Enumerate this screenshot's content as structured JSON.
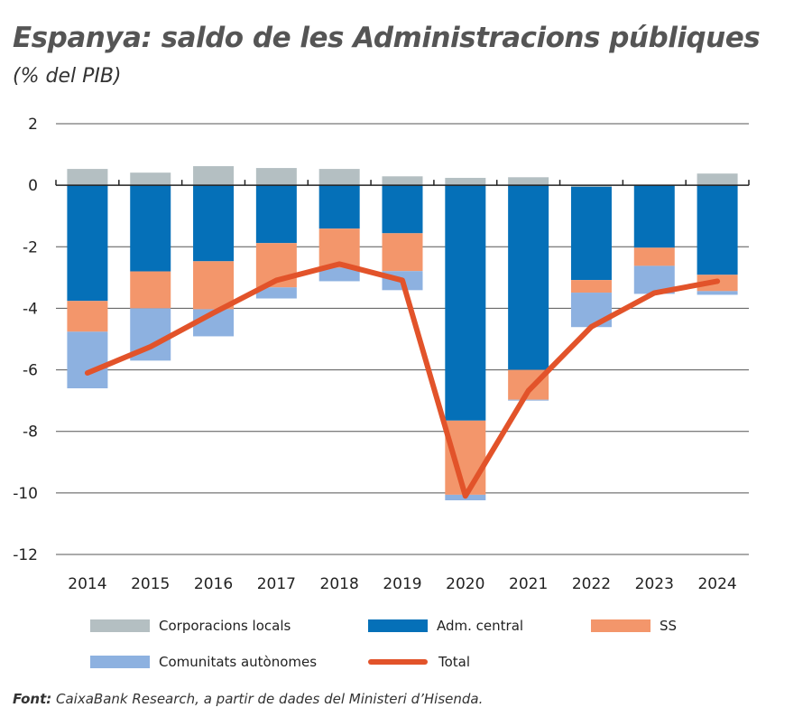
{
  "title": "Espanya: saldo de les Administracions públiques",
  "subtitle": "(% del PIB)",
  "source_label": "Font:",
  "source_text": " CaixaBank Research, a partir de dades del Ministeri d’Hisenda.",
  "chart_data": {
    "type": "bar",
    "stacked": true,
    "categories": [
      "2014",
      "2015",
      "2016",
      "2017",
      "2018",
      "2019",
      "2020",
      "2021",
      "2022",
      "2023",
      "2024"
    ],
    "ylim": [
      -12,
      2
    ],
    "yticks": [
      2,
      0,
      -2,
      -4,
      -6,
      -8,
      -10,
      -12
    ],
    "grid": true,
    "legend_position": "bottom",
    "series": [
      {
        "name": "Corporacions locals",
        "color": "#b4bfc2",
        "values": [
          0.53,
          0.41,
          0.62,
          0.56,
          0.53,
          0.29,
          0.24,
          0.26,
          -0.05,
          0.0,
          0.38
        ]
      },
      {
        "name": "Adm. central",
        "color": "#0570b8",
        "values": [
          -3.76,
          -2.8,
          -2.47,
          -1.88,
          -1.41,
          -1.56,
          -7.65,
          -6.0,
          -3.03,
          -2.03,
          -2.91
        ]
      },
      {
        "name": "SS",
        "color": "#f3966b",
        "values": [
          -1.0,
          -1.2,
          -1.56,
          -1.44,
          -1.27,
          -1.23,
          -2.41,
          -0.97,
          -0.41,
          -0.59,
          -0.53
        ]
      },
      {
        "name": "Comunitats autònomes",
        "color": "#8db1e0",
        "values": [
          -1.84,
          -1.7,
          -0.88,
          -0.36,
          -0.44,
          -0.62,
          -0.18,
          -0.03,
          -1.12,
          -0.91,
          -0.12
        ]
      }
    ],
    "line": {
      "name": "Total",
      "color": "#e2532a",
      "values": [
        -6.1,
        -5.25,
        -4.15,
        -3.09,
        -2.56,
        -3.09,
        -10.1,
        -6.68,
        -4.6,
        -3.5,
        -3.12
      ]
    }
  }
}
